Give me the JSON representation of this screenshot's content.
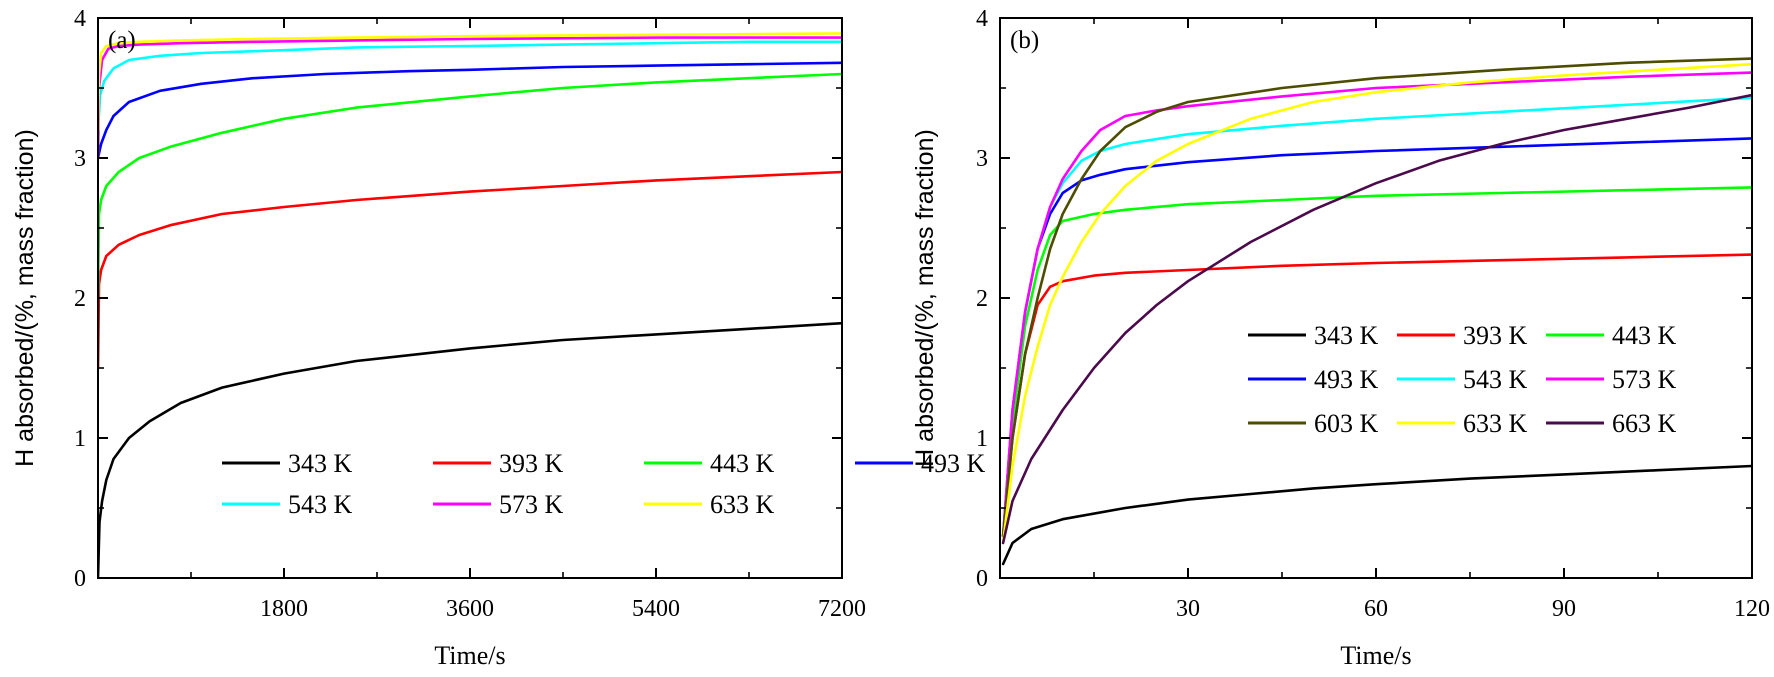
{
  "chart_data": [
    {
      "type": "line",
      "panel_label": "(a)",
      "xlabel": "Time/s",
      "ylabel": "H absorbed/(%, mass fraction)",
      "xlim": [
        0,
        7200
      ],
      "ylim": [
        0,
        4
      ],
      "xticks": [
        1800,
        3600,
        5400,
        7200
      ],
      "yticks": [
        0,
        1,
        2,
        3,
        4
      ],
      "legend_position": "bottom-center",
      "legend_columns": 4,
      "series": [
        {
          "name": "343 K",
          "color": "#000000",
          "x": [
            0,
            15,
            40,
            80,
            150,
            300,
            500,
            800,
            1200,
            1800,
            2500,
            3600,
            4500,
            5400,
            6300,
            7200
          ],
          "y": [
            0,
            0.4,
            0.55,
            0.7,
            0.85,
            1.0,
            1.12,
            1.25,
            1.36,
            1.46,
            1.55,
            1.64,
            1.7,
            1.74,
            1.78,
            1.82
          ]
        },
        {
          "name": "393 K",
          "color": "#ff0000",
          "x": [
            0,
            10,
            30,
            80,
            200,
            400,
            700,
            1200,
            1800,
            2500,
            3600,
            4500,
            5400,
            6300,
            7200
          ],
          "y": [
            1.5,
            2.1,
            2.2,
            2.3,
            2.38,
            2.45,
            2.52,
            2.6,
            2.65,
            2.7,
            2.76,
            2.8,
            2.84,
            2.87,
            2.9
          ]
        },
        {
          "name": "443 K",
          "color": "#00ff00",
          "x": [
            0,
            10,
            30,
            80,
            200,
            400,
            700,
            1200,
            1800,
            2500,
            3600,
            4500,
            5400,
            6300,
            7200
          ],
          "y": [
            2.0,
            2.6,
            2.7,
            2.8,
            2.9,
            3.0,
            3.08,
            3.18,
            3.28,
            3.36,
            3.44,
            3.5,
            3.54,
            3.57,
            3.6
          ]
        },
        {
          "name": "493 K",
          "color": "#0000ff",
          "x": [
            0,
            30,
            80,
            150,
            300,
            600,
            1000,
            1500,
            2200,
            3000,
            3600,
            4500,
            5400,
            6300,
            7200
          ],
          "y": [
            3.0,
            3.1,
            3.2,
            3.3,
            3.4,
            3.48,
            3.53,
            3.57,
            3.6,
            3.62,
            3.63,
            3.65,
            3.66,
            3.67,
            3.68
          ]
        },
        {
          "name": "543 K",
          "color": "#00ffff",
          "x": [
            0,
            20,
            60,
            150,
            300,
            600,
            1000,
            1800,
            2500,
            3600,
            4500,
            5400,
            6300,
            7200
          ],
          "y": [
            3.2,
            3.45,
            3.55,
            3.64,
            3.7,
            3.73,
            3.75,
            3.77,
            3.79,
            3.8,
            3.81,
            3.82,
            3.83,
            3.83
          ]
        },
        {
          "name": "573 K",
          "color": "#ff00ff",
          "x": [
            0,
            10,
            40,
            100,
            200,
            400,
            800,
            1500,
            2500,
            3600,
            5400,
            7200
          ],
          "y": [
            3.0,
            3.5,
            3.7,
            3.78,
            3.8,
            3.81,
            3.82,
            3.83,
            3.84,
            3.85,
            3.86,
            3.86
          ]
        },
        {
          "name": "633 K",
          "color": "#ffff00",
          "x": [
            0,
            10,
            30,
            80,
            200,
            400,
            800,
            1500,
            2500,
            3600,
            5400,
            7200
          ],
          "y": [
            3.2,
            3.6,
            3.75,
            3.8,
            3.82,
            3.83,
            3.84,
            3.85,
            3.86,
            3.87,
            3.88,
            3.89
          ]
        }
      ]
    },
    {
      "type": "line",
      "panel_label": "(b)",
      "xlabel": "Time/s",
      "ylabel": "H absorbed/(%, mass fraction)",
      "xlim": [
        0,
        120
      ],
      "ylim": [
        0,
        4
      ],
      "xticks": [
        30,
        60,
        90,
        120
      ],
      "yticks": [
        0,
        1,
        2,
        3,
        4
      ],
      "legend_position": "center-right",
      "legend_columns": 3,
      "series": [
        {
          "name": "343 K",
          "color": "#000000",
          "x": [
            0.5,
            2,
            5,
            10,
            20,
            30,
            40,
            50,
            60,
            75,
            90,
            105,
            120
          ],
          "y": [
            0.1,
            0.25,
            0.35,
            0.42,
            0.5,
            0.56,
            0.6,
            0.64,
            0.67,
            0.71,
            0.74,
            0.77,
            0.8
          ]
        },
        {
          "name": "393 K",
          "color": "#ff0000",
          "x": [
            0.5,
            2,
            4,
            6,
            8,
            10,
            15,
            20,
            30,
            45,
            60,
            80,
            100,
            120
          ],
          "y": [
            0.3,
            1.0,
            1.6,
            1.95,
            2.08,
            2.12,
            2.16,
            2.18,
            2.2,
            2.23,
            2.25,
            2.27,
            2.29,
            2.31
          ]
        },
        {
          "name": "443 K",
          "color": "#00ff00",
          "x": [
            0.5,
            2,
            4,
            6,
            8,
            10,
            15,
            20,
            30,
            45,
            60,
            80,
            100,
            120
          ],
          "y": [
            0.3,
            1.1,
            1.8,
            2.2,
            2.45,
            2.55,
            2.6,
            2.63,
            2.67,
            2.7,
            2.73,
            2.75,
            2.77,
            2.79
          ]
        },
        {
          "name": "493 K",
          "color": "#0000ff",
          "x": [
            0.5,
            2,
            4,
            6,
            8,
            10,
            13,
            16,
            20,
            30,
            45,
            60,
            80,
            100,
            120
          ],
          "y": [
            0.3,
            1.2,
            1.9,
            2.35,
            2.6,
            2.75,
            2.84,
            2.88,
            2.92,
            2.97,
            3.02,
            3.05,
            3.08,
            3.11,
            3.14
          ]
        },
        {
          "name": "543 K",
          "color": "#00ffff",
          "x": [
            0.5,
            2,
            4,
            6,
            8,
            10,
            13,
            16,
            20,
            30,
            45,
            60,
            80,
            100,
            120
          ],
          "y": [
            0.3,
            1.2,
            1.9,
            2.35,
            2.65,
            2.82,
            2.98,
            3.05,
            3.1,
            3.17,
            3.23,
            3.28,
            3.33,
            3.38,
            3.43
          ]
        },
        {
          "name": "573 K",
          "color": "#ff00ff",
          "x": [
            0.5,
            2,
            4,
            6,
            8,
            10,
            13,
            16,
            20,
            25,
            30,
            45,
            60,
            80,
            100,
            120
          ],
          "y": [
            0.3,
            1.2,
            1.9,
            2.35,
            2.65,
            2.85,
            3.05,
            3.2,
            3.3,
            3.34,
            3.37,
            3.44,
            3.5,
            3.54,
            3.58,
            3.61
          ]
        },
        {
          "name": "603 K",
          "color": "#4d4d00",
          "x": [
            0.5,
            2,
            4,
            6,
            8,
            10,
            13,
            16,
            20,
            25,
            30,
            45,
            60,
            80,
            100,
            120
          ],
          "y": [
            0.3,
            1.0,
            1.6,
            2.0,
            2.35,
            2.6,
            2.85,
            3.05,
            3.22,
            3.33,
            3.4,
            3.5,
            3.57,
            3.63,
            3.68,
            3.71
          ]
        },
        {
          "name": "633 K",
          "color": "#ffff00",
          "x": [
            0.5,
            2,
            4,
            6,
            8,
            10,
            13,
            16,
            20,
            25,
            30,
            40,
            50,
            60,
            75,
            90,
            105,
            120
          ],
          "y": [
            0.25,
            0.8,
            1.3,
            1.65,
            1.95,
            2.15,
            2.4,
            2.6,
            2.8,
            2.98,
            3.1,
            3.28,
            3.4,
            3.47,
            3.54,
            3.59,
            3.63,
            3.67
          ]
        },
        {
          "name": "663 K",
          "color": "#4b0a4b",
          "x": [
            0.5,
            2,
            5,
            10,
            15,
            20,
            25,
            30,
            40,
            50,
            60,
            70,
            80,
            90,
            100,
            110,
            120
          ],
          "y": [
            0.25,
            0.55,
            0.85,
            1.2,
            1.5,
            1.75,
            1.95,
            2.12,
            2.4,
            2.63,
            2.82,
            2.98,
            3.1,
            3.2,
            3.28,
            3.36,
            3.45
          ]
        }
      ]
    }
  ]
}
